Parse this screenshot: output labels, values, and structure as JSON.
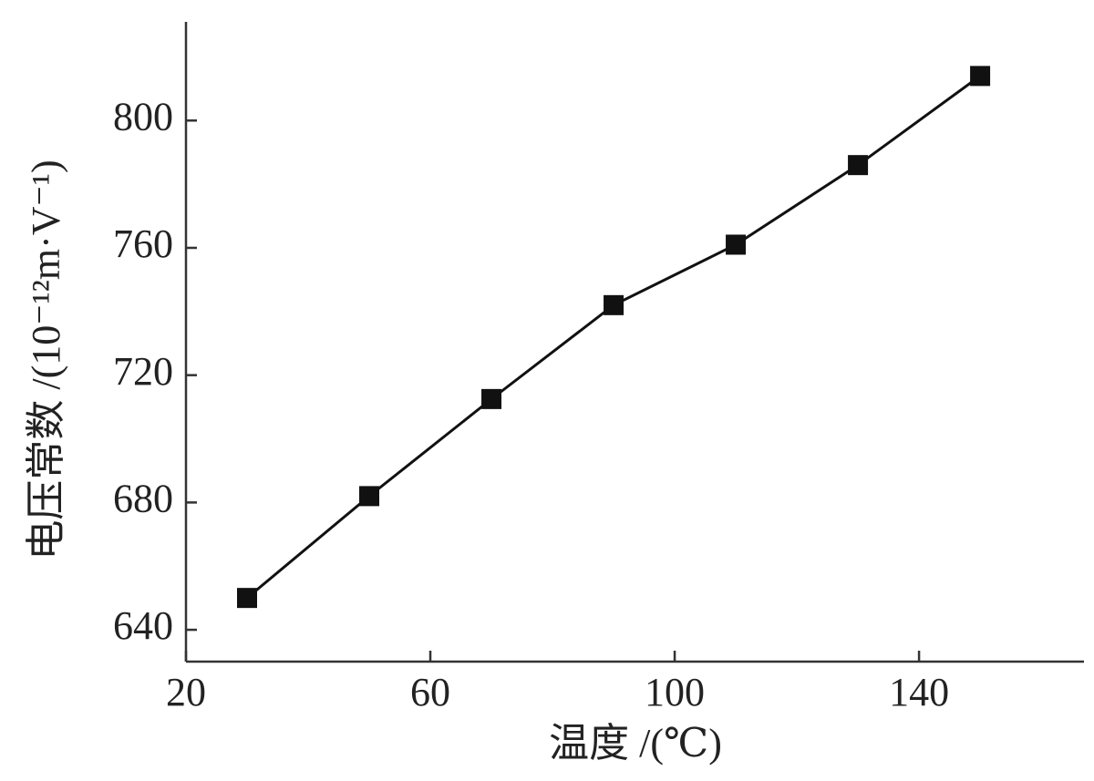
{
  "chart_data": {
    "type": "line",
    "x_label": "温度 /(℃)",
    "y_label": "电压常数 /(10⁻¹²m·V⁻¹)",
    "x": [
      30,
      50,
      70,
      90,
      110,
      130,
      150
    ],
    "series": [
      {
        "color": "#111111",
        "values": [
          650,
          682,
          712.5,
          742,
          761,
          786,
          814
        ]
      }
    ],
    "xlim": [
      20,
      167
    ],
    "xticks": [
      20,
      60,
      100,
      140
    ],
    "ylim": [
      630,
      831
    ],
    "yticks": [
      640,
      680,
      720,
      760,
      800
    ],
    "grid": false
  }
}
